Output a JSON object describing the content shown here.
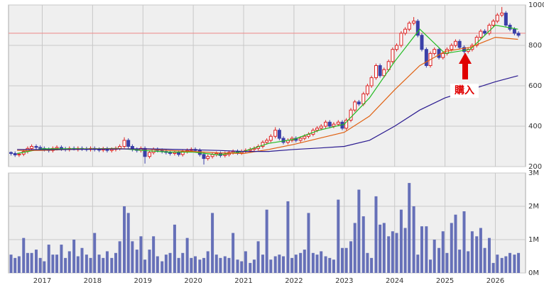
{
  "chart_data": {
    "type": "candlestick",
    "annotation": "購入",
    "hline": 860,
    "hline_color": "#e88",
    "up_color": "#dd2222",
    "down_color": "#3a3fa8",
    "volume_color": "#6670b8",
    "xlim": [
      2016.33,
      2026.6
    ],
    "xticks": [
      2017,
      2018,
      2019,
      2020,
      2021,
      2022,
      2023,
      2024,
      2025,
      2026
    ],
    "ylim": [
      200,
      1000
    ],
    "yticks": [
      200,
      400,
      600,
      800,
      1000
    ],
    "vol_ylim": [
      0,
      3
    ],
    "vol_yticks": [
      {
        "value": 0,
        "label": "0M"
      },
      {
        "value": 1,
        "label": "1M"
      },
      {
        "value": 2,
        "label": "2M"
      },
      {
        "value": 3,
        "label": "3M"
      }
    ],
    "grid": true,
    "x": [
      2016.38,
      2016.46,
      2016.54,
      2016.63,
      2016.71,
      2016.79,
      2016.88,
      2016.96,
      2017.04,
      2017.13,
      2017.21,
      2017.29,
      2017.38,
      2017.46,
      2017.54,
      2017.63,
      2017.71,
      2017.79,
      2017.88,
      2017.96,
      2018.04,
      2018.13,
      2018.21,
      2018.29,
      2018.38,
      2018.46,
      2018.54,
      2018.63,
      2018.71,
      2018.79,
      2018.88,
      2018.96,
      2019.04,
      2019.13,
      2019.21,
      2019.29,
      2019.38,
      2019.46,
      2019.54,
      2019.63,
      2019.71,
      2019.79,
      2019.88,
      2019.96,
      2020.04,
      2020.13,
      2020.21,
      2020.29,
      2020.38,
      2020.46,
      2020.54,
      2020.63,
      2020.71,
      2020.79,
      2020.88,
      2020.96,
      2021.04,
      2021.13,
      2021.21,
      2021.29,
      2021.38,
      2021.46,
      2021.54,
      2021.63,
      2021.71,
      2021.79,
      2021.88,
      2021.96,
      2022.04,
      2022.13,
      2022.21,
      2022.29,
      2022.38,
      2022.46,
      2022.54,
      2022.63,
      2022.71,
      2022.79,
      2022.88,
      2022.96,
      2023.04,
      2023.13,
      2023.21,
      2023.29,
      2023.38,
      2023.46,
      2023.54,
      2023.63,
      2023.71,
      2023.79,
      2023.88,
      2023.96,
      2024.04,
      2024.13,
      2024.21,
      2024.29,
      2024.38,
      2024.46,
      2024.54,
      2024.63,
      2024.71,
      2024.79,
      2024.88,
      2024.96,
      2025.04,
      2025.13,
      2025.21,
      2025.29,
      2025.38,
      2025.46,
      2025.54,
      2025.63,
      2025.71,
      2025.79,
      2025.88,
      2025.96,
      2026.04,
      2026.13,
      2026.21,
      2026.29,
      2026.38,
      2026.46
    ],
    "open": [
      270,
      265,
      258,
      262,
      275,
      290,
      300,
      295,
      290,
      285,
      280,
      290,
      295,
      288,
      285,
      290,
      285,
      290,
      288,
      285,
      290,
      285,
      282,
      288,
      280,
      285,
      290,
      300,
      330,
      300,
      285,
      280,
      290,
      250,
      270,
      285,
      280,
      275,
      270,
      265,
      270,
      260,
      275,
      280,
      285,
      280,
      260,
      240,
      250,
      260,
      265,
      255,
      260,
      270,
      275,
      268,
      275,
      280,
      285,
      290,
      300,
      320,
      330,
      350,
      380,
      340,
      320,
      330,
      340,
      330,
      340,
      350,
      360,
      380,
      390,
      400,
      420,
      400,
      410,
      420,
      390,
      430,
      480,
      520,
      510,
      560,
      600,
      640,
      700,
      650,
      680,
      720,
      780,
      800,
      860,
      880,
      910,
      920,
      850,
      780,
      700,
      760,
      780,
      740,
      760,
      780,
      800,
      820,
      790,
      770,
      780,
      800,
      840,
      870,
      860,
      900,
      920,
      950,
      960,
      900,
      880,
      860
    ],
    "high": [
      275,
      275,
      268,
      285,
      300,
      310,
      310,
      305,
      300,
      295,
      300,
      305,
      305,
      298,
      300,
      300,
      300,
      300,
      298,
      300,
      300,
      295,
      298,
      298,
      295,
      300,
      310,
      345,
      340,
      310,
      295,
      300,
      300,
      280,
      295,
      295,
      290,
      285,
      280,
      280,
      280,
      285,
      290,
      295,
      295,
      290,
      270,
      260,
      270,
      275,
      275,
      275,
      280,
      285,
      285,
      285,
      290,
      295,
      300,
      310,
      330,
      340,
      360,
      395,
      390,
      350,
      340,
      350,
      350,
      350,
      360,
      370,
      390,
      400,
      410,
      430,
      430,
      420,
      430,
      430,
      440,
      490,
      530,
      530,
      570,
      610,
      650,
      710,
      710,
      690,
      730,
      790,
      810,
      870,
      890,
      920,
      940,
      930,
      860,
      790,
      770,
      790,
      790,
      770,
      790,
      810,
      830,
      830,
      800,
      790,
      810,
      850,
      880,
      880,
      910,
      930,
      960,
      990,
      970,
      910,
      890,
      870
    ],
    "low": [
      255,
      248,
      248,
      252,
      265,
      280,
      285,
      280,
      275,
      270,
      270,
      280,
      278,
      275,
      275,
      280,
      275,
      278,
      275,
      275,
      275,
      272,
      272,
      270,
      270,
      275,
      280,
      290,
      290,
      275,
      270,
      270,
      215,
      240,
      260,
      270,
      265,
      260,
      255,
      255,
      250,
      250,
      265,
      270,
      270,
      250,
      210,
      230,
      240,
      250,
      245,
      245,
      250,
      260,
      258,
      258,
      265,
      270,
      275,
      280,
      290,
      310,
      320,
      340,
      330,
      310,
      310,
      320,
      320,
      320,
      330,
      340,
      350,
      370,
      380,
      390,
      390,
      390,
      400,
      380,
      380,
      420,
      470,
      500,
      500,
      550,
      590,
      630,
      640,
      640,
      670,
      710,
      770,
      790,
      850,
      870,
      900,
      840,
      770,
      690,
      690,
      750,
      730,
      730,
      750,
      770,
      790,
      780,
      760,
      760,
      770,
      790,
      830,
      850,
      850,
      890,
      910,
      940,
      890,
      870,
      850,
      840
    ],
    "close": [
      265,
      258,
      262,
      275,
      290,
      300,
      295,
      290,
      285,
      280,
      290,
      295,
      288,
      285,
      290,
      285,
      290,
      288,
      285,
      290,
      285,
      282,
      288,
      280,
      285,
      290,
      300,
      330,
      300,
      285,
      280,
      290,
      250,
      270,
      285,
      280,
      275,
      270,
      265,
      270,
      260,
      275,
      280,
      285,
      280,
      260,
      240,
      250,
      260,
      265,
      255,
      260,
      270,
      275,
      268,
      275,
      280,
      285,
      290,
      300,
      320,
      330,
      350,
      380,
      340,
      320,
      330,
      340,
      330,
      340,
      350,
      360,
      380,
      390,
      400,
      420,
      400,
      410,
      420,
      390,
      430,
      480,
      520,
      510,
      560,
      600,
      640,
      700,
      650,
      680,
      720,
      780,
      800,
      860,
      880,
      910,
      920,
      850,
      780,
      700,
      760,
      780,
      740,
      760,
      780,
      800,
      820,
      790,
      770,
      780,
      800,
      840,
      870,
      860,
      900,
      920,
      950,
      960,
      900,
      880,
      860,
      850
    ],
    "volume": [
      0.55,
      0.45,
      0.5,
      1.05,
      0.6,
      0.6,
      0.7,
      0.45,
      0.35,
      0.85,
      0.55,
      0.55,
      0.85,
      0.45,
      0.65,
      1.0,
      0.5,
      0.75,
      0.55,
      0.45,
      1.2,
      0.55,
      0.45,
      0.65,
      0.45,
      0.6,
      0.95,
      2.0,
      1.8,
      0.95,
      0.7,
      1.1,
      0.4,
      0.7,
      1.1,
      0.5,
      0.35,
      0.55,
      0.6,
      1.45,
      0.45,
      0.6,
      1.05,
      0.45,
      0.5,
      0.4,
      0.45,
      0.65,
      1.8,
      0.55,
      0.45,
      0.5,
      0.45,
      1.2,
      0.4,
      0.35,
      0.65,
      0.3,
      0.4,
      0.95,
      0.55,
      1.9,
      0.4,
      0.5,
      0.55,
      0.5,
      2.15,
      0.45,
      0.55,
      0.6,
      0.7,
      1.8,
      0.6,
      0.55,
      0.65,
      0.5,
      0.45,
      0.4,
      2.2,
      0.75,
      0.75,
      0.95,
      1.5,
      2.5,
      1.7,
      0.6,
      0.45,
      2.3,
      1.45,
      1.5,
      1.1,
      1.25,
      1.2,
      1.9,
      1.35,
      2.7,
      2.0,
      0.55,
      1.4,
      1.4,
      0.4,
      1.0,
      0.75,
      1.25,
      0.6,
      1.5,
      1.75,
      0.7,
      1.85,
      0.65,
      1.25,
      1.1,
      1.35,
      0.75,
      1.05,
      0.3,
      0.55,
      0.45,
      0.5,
      0.6,
      0.55,
      0.6
    ],
    "series": [
      {
        "color": "#22bb22",
        "x": [
          2016.5,
          2017,
          2017.5,
          2018,
          2018.5,
          2019,
          2019.5,
          2020,
          2020.5,
          2021,
          2021.5,
          2022,
          2022.5,
          2023,
          2023.5,
          2024,
          2024.5,
          2025,
          2025.5,
          2026,
          2026.45
        ],
        "values": [
          265,
          288,
          288,
          288,
          290,
          280,
          272,
          272,
          258,
          275,
          315,
          335,
          380,
          410,
          540,
          720,
          880,
          760,
          780,
          900,
          880
        ]
      },
      {
        "color": "#e06010",
        "x": [
          2016.5,
          2017,
          2017.5,
          2018,
          2018.5,
          2019,
          2019.5,
          2020,
          2020.5,
          2021,
          2021.5,
          2022,
          2022.5,
          2023,
          2023.5,
          2024,
          2024.5,
          2025,
          2025.5,
          2026,
          2026.45
        ],
        "values": [
          280,
          280,
          285,
          287,
          288,
          287,
          280,
          275,
          268,
          265,
          285,
          310,
          340,
          370,
          450,
          580,
          700,
          770,
          790,
          840,
          830
        ]
      },
      {
        "color": "#2a1a90",
        "x": [
          2016.5,
          2017,
          2017.5,
          2018,
          2018.5,
          2019,
          2019.5,
          2020,
          2020.5,
          2021,
          2021.5,
          2022,
          2022.5,
          2023,
          2023.5,
          2024,
          2024.5,
          2025,
          2025.5,
          2026,
          2026.45
        ],
        "values": [
          285,
          284,
          285,
          286,
          287,
          288,
          286,
          283,
          280,
          275,
          275,
          285,
          292,
          300,
          330,
          400,
          480,
          540,
          580,
          620,
          650
        ]
      }
    ]
  }
}
